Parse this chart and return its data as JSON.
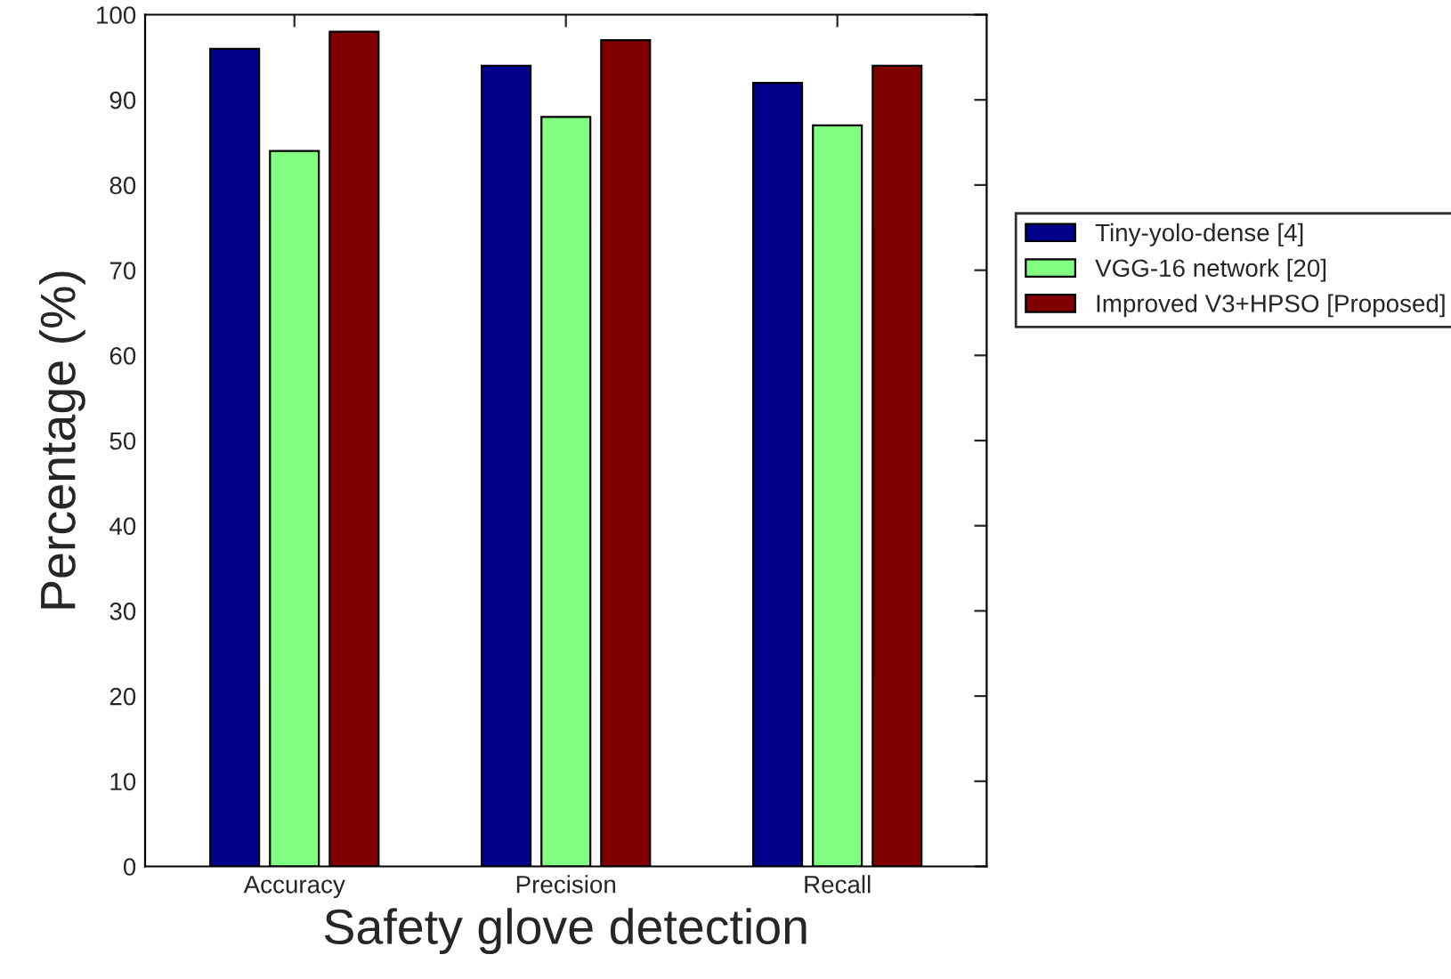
{
  "chart_data": {
    "type": "bar",
    "xlabel": "Safety glove detection",
    "ylabel": "Percentage (%)",
    "categories": [
      "Accuracy",
      "Precision",
      "Recall"
    ],
    "series": [
      {
        "name": "Tiny-yolo-dense [4]",
        "color": "#00008b",
        "values": [
          96,
          94,
          92
        ]
      },
      {
        "name": "VGG-16 network [20]",
        "color": "#80ff80",
        "values": [
          84,
          88,
          87
        ]
      },
      {
        "name": "Improved V3+HPSO [Proposed]",
        "color": "#800000",
        "values": [
          98,
          97,
          94
        ]
      }
    ],
    "ylim": [
      0,
      100
    ],
    "yticks": [
      0,
      10,
      20,
      30,
      40,
      50,
      60,
      70,
      80,
      90,
      100
    ],
    "grid": false,
    "legend": "right"
  }
}
